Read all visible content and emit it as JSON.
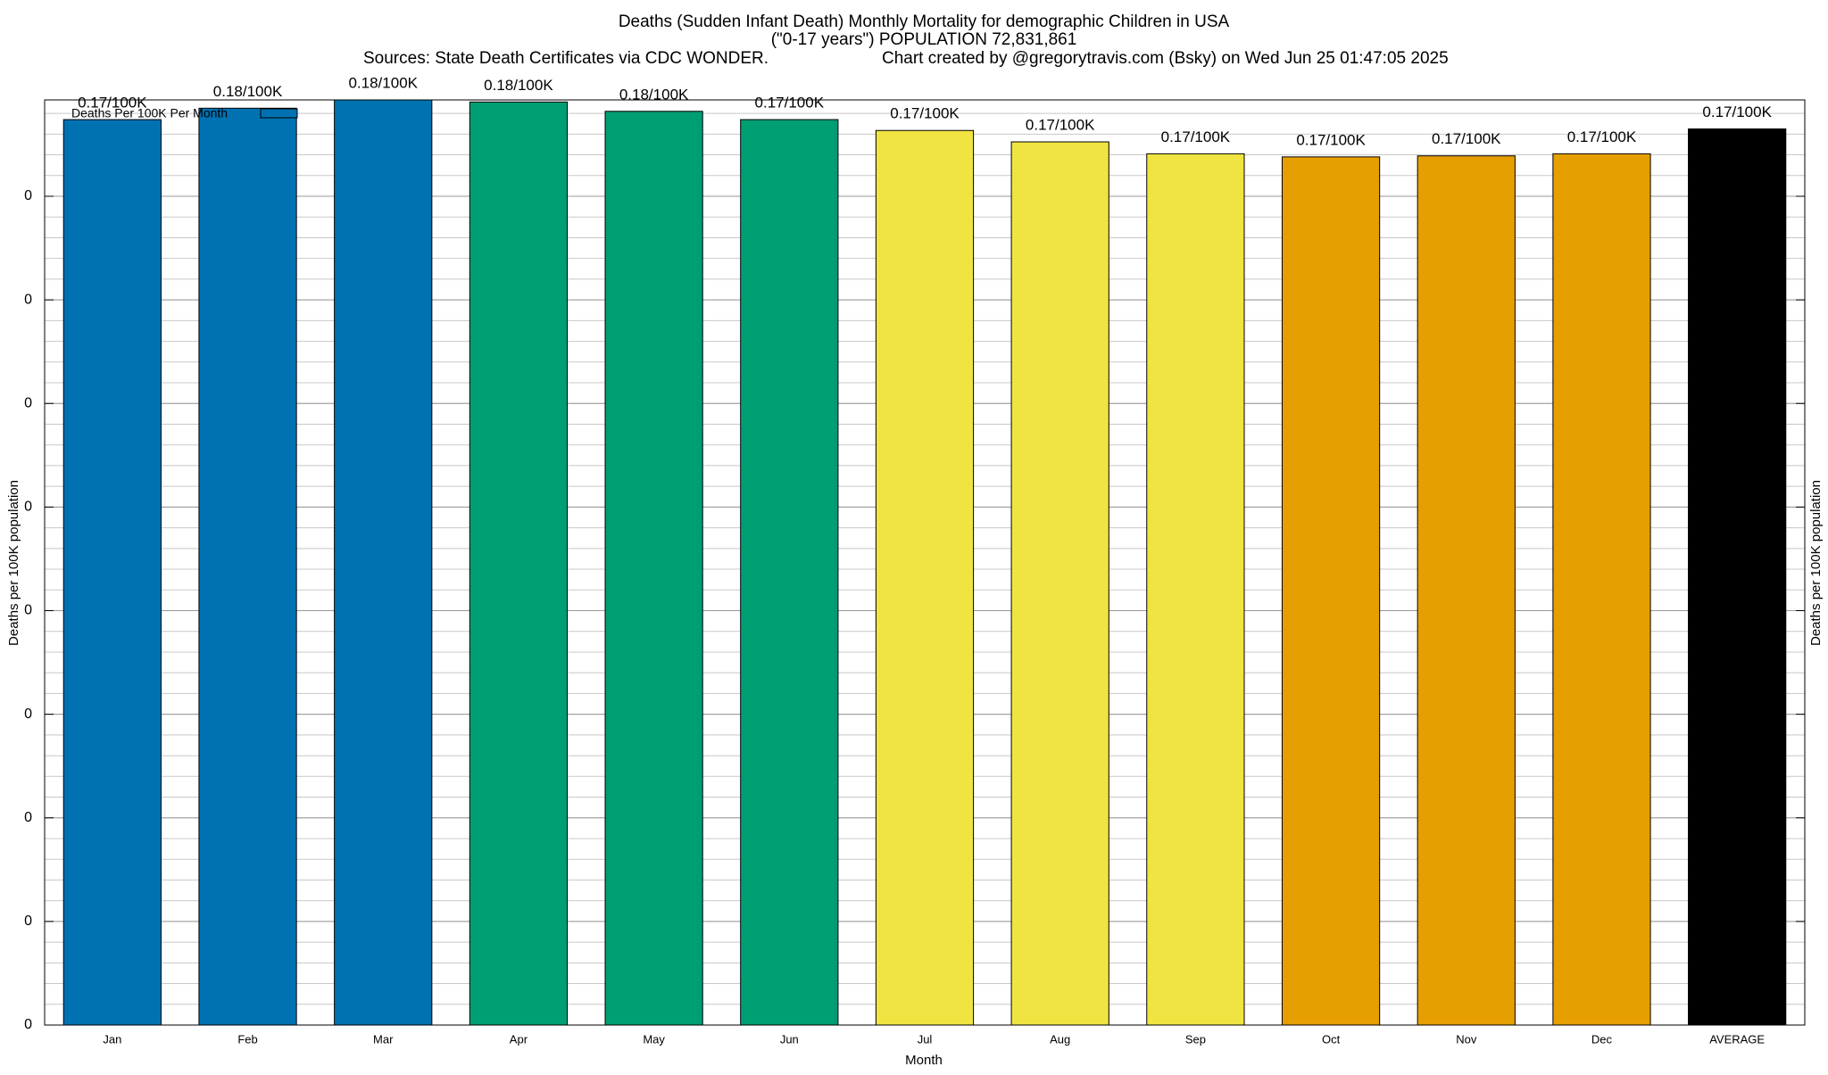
{
  "chart_data": {
    "type": "bar",
    "title": "Deaths (Sudden Infant Death) Monthly Mortality for demographic Children in USA",
    "subtitle": "(\"0-17 years\") POPULATION 72,831,861",
    "source": "Sources: State Death Certificates via CDC WONDER.",
    "credit": "Chart created by @gregorytravis.com (Bsky) on Wed Jun 25 01:47:05 2025",
    "x_label": "Month",
    "y_label": "Deaths per 100K population",
    "y2_label": "Deaths per 100K population",
    "categories": [
      "Jan",
      "Feb",
      "Mar",
      "Apr",
      "May",
      "Jun",
      "Jul",
      "Aug",
      "Sep",
      "Oct",
      "Nov",
      "Dec",
      "AVERAGE"
    ],
    "values": [
      0.1748,
      0.177,
      0.1786,
      0.1782,
      0.1764,
      0.1748,
      0.1727,
      0.1705,
      0.1682,
      0.1676,
      0.1678,
      0.1682,
      0.173
    ],
    "value_labels": [
      "0.17/100K",
      "0.18/100K",
      "0.18/100K",
      "0.18/100K",
      "0.18/100K",
      "0.17/100K",
      "0.17/100K",
      "0.17/100K",
      "0.17/100K",
      "0.17/100K",
      "0.17/100K",
      "0.17/100K",
      "0.17/100K"
    ],
    "colors": [
      "#0072b2",
      "#0072b2",
      "#0072b2",
      "#009e73",
      "#009e73",
      "#009e73",
      "#f0e442",
      "#f0e442",
      "#f0e442",
      "#e69f00",
      "#e69f00",
      "#e69f00",
      "#000000"
    ],
    "ylim": [
      0,
      0.1786
    ],
    "yticks": [
      0,
      {
        "value": 0.02,
        "label": "0"
      },
      {
        "value": 0.04,
        "label": "0"
      },
      {
        "value": 0.06,
        "label": "0"
      },
      {
        "value": 0.08,
        "label": "0"
      },
      {
        "value": 0.1,
        "label": "0"
      },
      {
        "value": 0.12,
        "label": "0"
      },
      {
        "value": 0.14,
        "label": "0"
      },
      {
        "value": 0.16,
        "label": "0"
      }
    ],
    "grid": true,
    "minor_grid": 5,
    "legend": {
      "label": "Deaths Per 100K Per Month",
      "color": "#0072b2",
      "position": "top-left"
    }
  }
}
